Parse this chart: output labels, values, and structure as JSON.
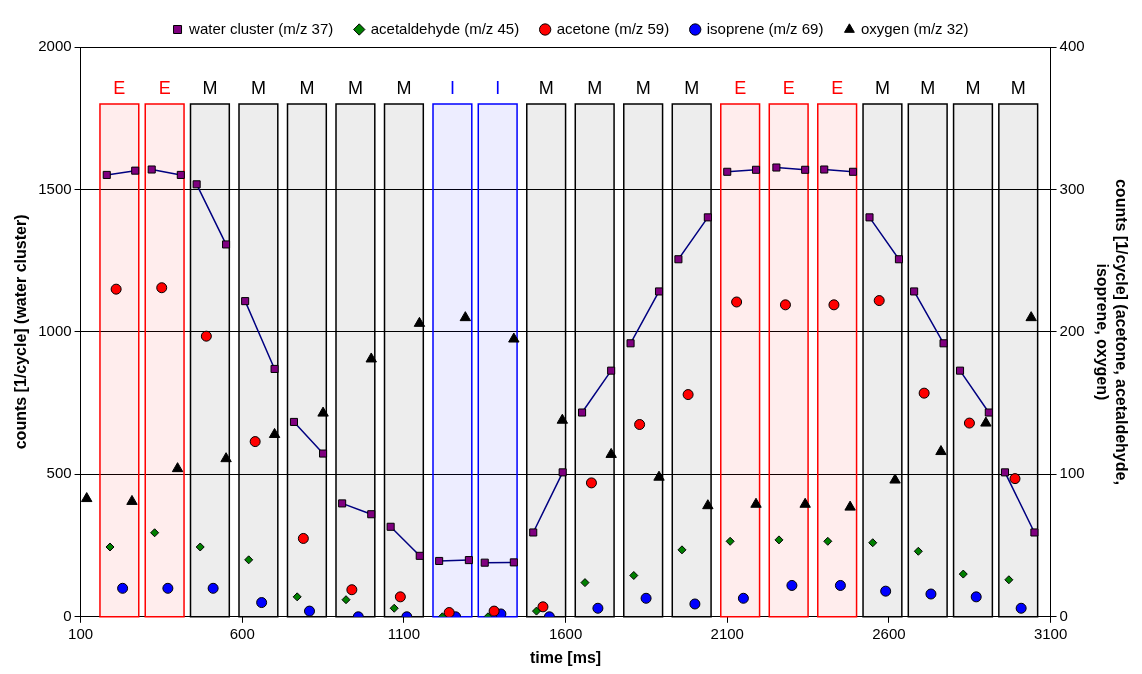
{
  "chart_data": {
    "type": "line",
    "xlabel": "time [ms]",
    "ylabel": "counts [1/cycle] (water cluster)",
    "y2label": "counts [1/cycle] (acetone, acetaldehyde, isoprene, oxygen)",
    "xlim": [
      100,
      3100
    ],
    "xticks": [
      100,
      600,
      1100,
      1600,
      2100,
      2600,
      3100
    ],
    "ylim": [
      0,
      2000
    ],
    "yticks": [
      0,
      500,
      1000,
      1500,
      2000
    ],
    "y2lim": [
      0,
      400
    ],
    "y2ticks": [
      0,
      100,
      200,
      300,
      400
    ],
    "grid": "y",
    "legend": "top",
    "series": [
      {
        "name": "water cluster (m/z 37)",
        "type": "line",
        "marker": "square",
        "color": "#800080",
        "x": [
          181,
          269,
          290,
          320,
          410,
          430,
          459,
          550,
          575,
          609,
          700,
          725,
          760,
          850,
          875,
          909,
          999,
          1025,
          1059,
          1149,
          1175,
          1209,
          1301,
          1320,
          1350,
          1440,
          1465,
          1500,
          1591,
          1615,
          1651,
          1741,
          1765,
          1801,
          1889,
          1915,
          1949,
          2040,
          2065,
          2100,
          2189,
          2215,
          2252,
          2341,
          2365,
          2400,
          2489,
          2510,
          2540,
          2631,
          2650,
          2678,
          2769,
          2790,
          2820,
          2909,
          2930,
          2959,
          3050
        ],
        "values": [
          1551,
          1566,
          null,
          1570,
          1551,
          null,
          1518,
          1307,
          null,
          1108,
          870,
          null,
          684,
          573,
          null,
          398,
          360,
          null,
          316,
          214,
          null,
          196,
          199,
          null,
          190,
          191,
          null,
          296,
          507,
          null,
          717,
          864,
          null,
          960,
          1142,
          null,
          1255,
          1402,
          null,
          1562,
          1569,
          null,
          1577,
          1569,
          null,
          1570,
          1562,
          null,
          1402,
          1255,
          null,
          1142,
          960,
          null,
          864,
          717,
          null,
          507,
          296
        ]
      },
      {
        "name": "acetaldehyde (m/z 45)",
        "type": "scatter",
        "marker": "diamond",
        "color": "#008000",
        "axis": "y2",
        "x": [
          191,
          329,
          470,
          620,
          770,
          921,
          1070,
          1219,
          1360,
          1510,
          1660,
          1811,
          1960,
          2109,
          2260,
          2411,
          2550,
          2691,
          2830,
          2971
        ],
        "values": [
          49,
          59,
          49,
          40,
          14,
          12,
          6,
          0,
          0,
          4,
          24,
          29,
          47,
          53,
          54,
          53,
          52,
          46,
          30,
          26
        ]
      },
      {
        "name": "acetone (m/z 59)",
        "type": "scatter",
        "marker": "circle",
        "color": "#ff0000",
        "axis": "y2",
        "x": [
          210,
          351,
          489,
          640,
          789,
          939,
          1089,
          1240,
          1379,
          1530,
          1680,
          1829,
          1979,
          2129,
          2280,
          2430,
          2570,
          2709,
          2849,
          2990
        ],
        "values": [
          230,
          231,
          197,
          123,
          55,
          19,
          14,
          3,
          4,
          7,
          94,
          135,
          156,
          221,
          219,
          219,
          222,
          157,
          136,
          97
        ]
      },
      {
        "name": "isoprene (m/z 69)",
        "type": "scatter",
        "marker": "circle",
        "color": "#0000ff",
        "axis": "y2",
        "x": [
          230,
          370,
          510,
          660,
          808,
          959,
          1109,
          1260,
          1400,
          1550,
          1700,
          1849,
          2000,
          2150,
          2300,
          2450,
          2590,
          2730,
          2870,
          3009
        ],
        "values": [
          20,
          20,
          20,
          10,
          4,
          0,
          0,
          0,
          2,
          0,
          6,
          13,
          9,
          13,
          22,
          22,
          18,
          16,
          14,
          6
        ]
      },
      {
        "name": "oxygen (m/z 32)",
        "type": "scatter",
        "marker": "triangle",
        "color": "#000000",
        "axis": "y2",
        "x": [
          119,
          259,
          400,
          550,
          700,
          850,
          999,
          1148,
          1290,
          1440,
          1590,
          1741,
          1889,
          2040,
          2189,
          2341,
          2480,
          2619,
          2761,
          2900,
          3040
        ],
        "values": [
          83,
          81,
          104,
          111,
          128,
          143,
          181,
          206,
          210,
          195,
          138,
          114,
          98,
          78,
          79,
          79,
          77,
          96,
          116,
          136,
          210
        ]
      }
    ],
    "bands": [
      {
        "axis": "x",
        "from": 160,
        "to": 280,
        "label": "E",
        "color": "#ff0000"
      },
      {
        "axis": "x",
        "from": 300,
        "to": 420,
        "label": "E",
        "color": "#ff0000"
      },
      {
        "axis": "x",
        "from": 440,
        "to": 560,
        "label": "M",
        "color": "#000000"
      },
      {
        "axis": "x",
        "from": 590,
        "to": 710,
        "label": "M",
        "color": "#000000"
      },
      {
        "axis": "x",
        "from": 740,
        "to": 860,
        "label": "M",
        "color": "#000000"
      },
      {
        "axis": "x",
        "from": 890,
        "to": 1010,
        "label": "M",
        "color": "#000000"
      },
      {
        "axis": "x",
        "from": 1040,
        "to": 1160,
        "label": "M",
        "color": "#000000"
      },
      {
        "axis": "x",
        "from": 1190,
        "to": 1310,
        "label": "I",
        "color": "#0000ff"
      },
      {
        "axis": "x",
        "from": 1330,
        "to": 1450,
        "label": "I",
        "color": "#0000ff"
      },
      {
        "axis": "x",
        "from": 1480,
        "to": 1600,
        "label": "M",
        "color": "#000000"
      },
      {
        "axis": "x",
        "from": 1630,
        "to": 1750,
        "label": "M",
        "color": "#000000"
      },
      {
        "axis": "x",
        "from": 1780,
        "to": 1900,
        "label": "M",
        "color": "#000000"
      },
      {
        "axis": "x",
        "from": 1930,
        "to": 2050,
        "label": "M",
        "color": "#000000"
      },
      {
        "axis": "x",
        "from": 2080,
        "to": 2200,
        "label": "E",
        "color": "#ff0000"
      },
      {
        "axis": "x",
        "from": 2230,
        "to": 2350,
        "label": "E",
        "color": "#ff0000"
      },
      {
        "axis": "x",
        "from": 2380,
        "to": 2500,
        "label": "E",
        "color": "#ff0000"
      },
      {
        "axis": "x",
        "from": 2520,
        "to": 2640,
        "label": "M",
        "color": "#000000"
      },
      {
        "axis": "x",
        "from": 2660,
        "to": 2780,
        "label": "M",
        "color": "#000000"
      },
      {
        "axis": "x",
        "from": 2800,
        "to": 2920,
        "label": "M",
        "color": "#000000"
      },
      {
        "axis": "x",
        "from": 2940,
        "to": 3060,
        "label": "M",
        "color": "#000000"
      }
    ]
  }
}
